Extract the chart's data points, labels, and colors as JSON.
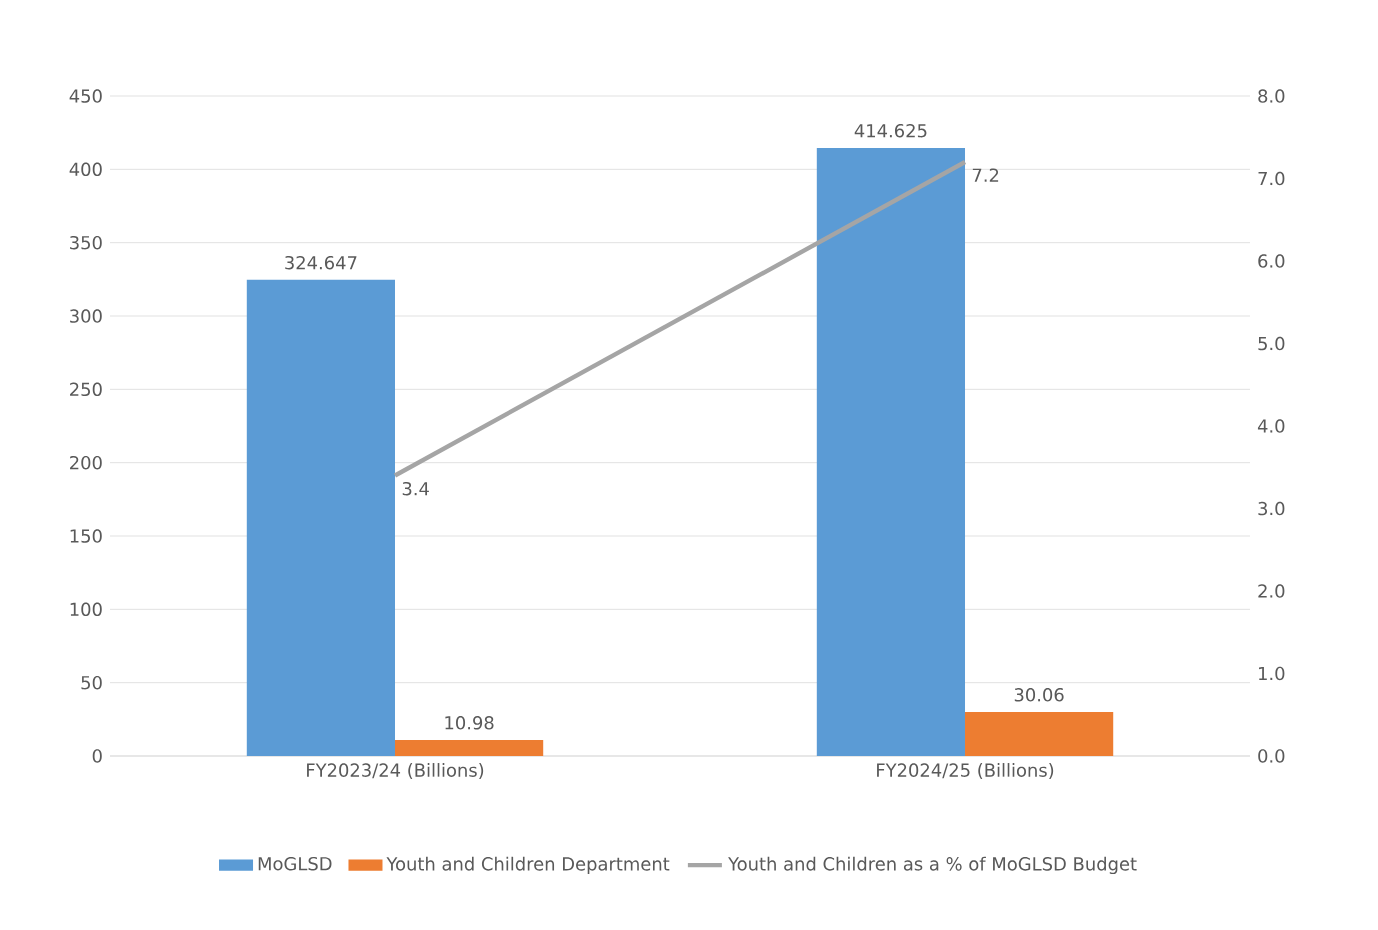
{
  "chart_data": {
    "type": "bar",
    "categories": [
      "FY2023/24 (Billions)",
      "FY2024/25 (Billions)"
    ],
    "series": [
      {
        "name": "MoGLSD",
        "color": "#5b9bd5",
        "values": [
          324.647,
          414.625
        ]
      },
      {
        "name": "Youth and Children Department",
        "color": "#ed7d31",
        "values": [
          10.98,
          30.06
        ]
      },
      {
        "name": "Youth and Children as a % of MoGLSD Budget",
        "type": "line",
        "axis": "y2",
        "color": "#a5a5a5",
        "values": [
          3.4,
          7.2
        ]
      }
    ],
    "ylim": [
      0,
      450
    ],
    "yticks": [
      0,
      50,
      100,
      150,
      200,
      250,
      300,
      350,
      400,
      450
    ],
    "y2lim": [
      0,
      8
    ],
    "y2ticks": [
      {
        "value": 0,
        "label": "0.0"
      },
      {
        "value": 1,
        "label": "1.0"
      },
      {
        "value": 2,
        "label": "2.0"
      },
      {
        "value": 3,
        "label": "3.0"
      },
      {
        "value": 4,
        "label": "4.0"
      },
      {
        "value": 5,
        "label": "5.0"
      },
      {
        "value": 6,
        "label": "6.0"
      },
      {
        "value": 7,
        "label": "7.0"
      },
      {
        "value": 8,
        "label": "8.0"
      }
    ],
    "grid": "y",
    "legend": "bottom",
    "data_labels": true,
    "marker": "none",
    "line_style": "solid"
  }
}
